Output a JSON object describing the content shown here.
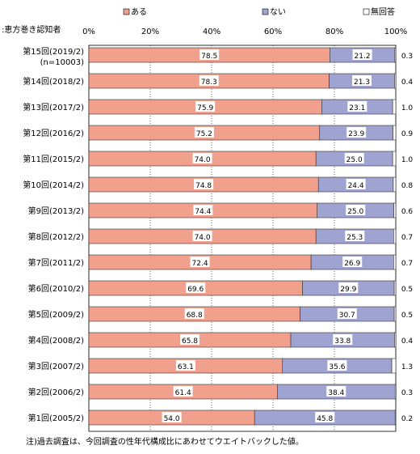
{
  "chart_data": {
    "type": "bar",
    "orientation": "horizontal",
    "stacked": true,
    "y_axis_title": ":恵方巻き認知者",
    "categories": [
      [
        "第15回(2019/2)",
        "(n=10003)"
      ],
      [
        "第14回(2018/2)"
      ],
      [
        "第13回(2017/2)"
      ],
      [
        "第12回(2016/2)"
      ],
      [
        "第11回(2015/2)"
      ],
      [
        "第10回(2014/2)"
      ],
      [
        "第9回(2013/2)"
      ],
      [
        "第8回(2012/2)"
      ],
      [
        "第7回(2011/2)"
      ],
      [
        "第6回(2010/2)"
      ],
      [
        "第5回(2009/2)"
      ],
      [
        "第4回(2008/2)"
      ],
      [
        "第3回(2007/2)"
      ],
      [
        "第2回(2006/2)"
      ],
      [
        "第1回(2005/2)"
      ]
    ],
    "series": [
      {
        "name": "ある",
        "color": "#f0a08c",
        "values": [
          78.5,
          78.3,
          75.9,
          75.2,
          74.0,
          74.8,
          74.4,
          74.0,
          72.4,
          69.6,
          68.8,
          65.8,
          63.1,
          61.4,
          54.0
        ],
        "labels": [
          "78.5",
          "78.3",
          "75.9",
          "75.2",
          "74.0",
          "74.8",
          "74.4",
          "74.0",
          "72.4",
          "69.6",
          "68.8",
          "65.8",
          "63.1",
          "61.4",
          "54.0"
        ]
      },
      {
        "name": "ない",
        "color": "#9fa3d2",
        "values": [
          21.2,
          21.3,
          23.1,
          23.9,
          25.0,
          24.4,
          25.0,
          25.3,
          26.9,
          29.9,
          30.7,
          33.8,
          35.6,
          38.4,
          45.8
        ],
        "labels": [
          "21.2",
          "21.3",
          "23.1",
          "23.9",
          "25.0",
          "24.4",
          "25.0",
          "25.3",
          "26.9",
          "29.9",
          "30.7",
          "33.8",
          "35.6",
          "38.4",
          "45.8"
        ]
      },
      {
        "name": "無回答",
        "color": "#ffffff",
        "values": [
          0.3,
          0.4,
          1.0,
          0.9,
          1.0,
          0.8,
          0.6,
          0.7,
          0.7,
          0.5,
          0.5,
          0.4,
          1.3,
          0.3,
          0.2
        ],
        "labels": [
          "0.3",
          "0.4",
          "1.0",
          "0.9",
          "1.0",
          "0.8",
          "0.6",
          "0.7",
          "0.7",
          "0.5",
          "0.5",
          "0.4",
          "1.3",
          "0.3",
          "0.2"
        ]
      }
    ],
    "x_ticks": [
      "0%",
      "20%",
      "40%",
      "60%",
      "80%",
      "100%"
    ],
    "xlim": [
      0,
      100
    ],
    "grid": true,
    "legend_position": "top"
  },
  "footnote": "注)過去調査は、今回調査の性年代構成比にあわせてウエイトバックした値。"
}
